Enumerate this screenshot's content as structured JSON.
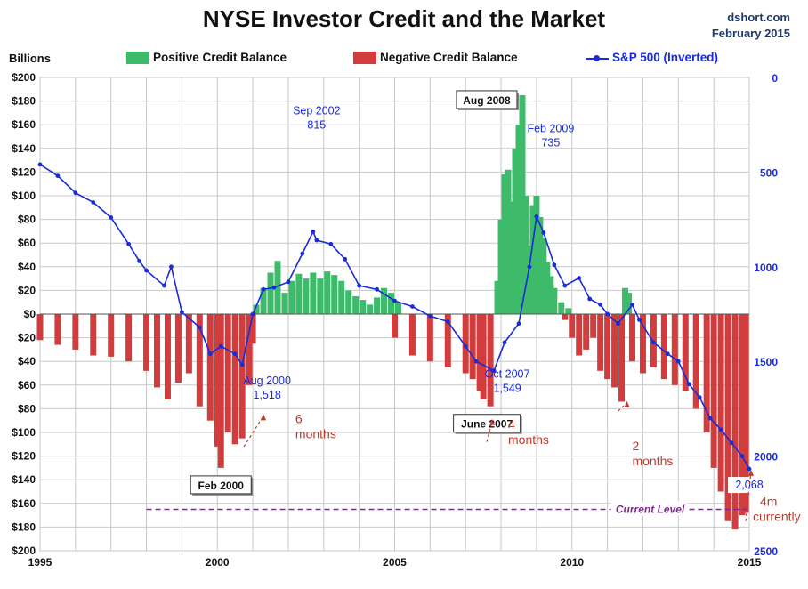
{
  "header": {
    "title": "NYSE Investor Credit and the Market",
    "source_line1": "dshort.com",
    "source_line2": "February 2015"
  },
  "chart_data": {
    "type": "bar",
    "title": "NYSE Investor Credit and the Market",
    "ylabel": "Billions",
    "xlim": [
      1995,
      2015
    ],
    "ylim": [
      -200,
      200
    ],
    "y2lim": [
      0,
      2500
    ],
    "y2_inverted": true,
    "grid": true,
    "legend_placement": "top",
    "x_ticks": [
      "1995",
      "2000",
      "2005",
      "2010",
      "2015"
    ],
    "y_ticks": [
      "$200",
      "$180",
      "$160",
      "$140",
      "$120",
      "$100",
      "$80",
      "$60",
      "$40",
      "$20",
      "$0",
      "$20",
      "$40",
      "$60",
      "$80",
      "$100",
      "$120",
      "$140",
      "$160",
      "$180",
      "$200"
    ],
    "y2_ticks": [
      "0",
      "500",
      "1000",
      "1500",
      "2000",
      "2500"
    ],
    "colors": {
      "positive": "#3dbb6a",
      "negative": "#d23c3c",
      "sp500": "#1a2bd8",
      "current_level": "#7a2a8a",
      "annotation": "#c0392b",
      "grid": "#c8c8c8"
    },
    "series": [
      {
        "name": "Positive Credit Balance",
        "x": [
          2001.1,
          2001.3,
          2001.5,
          2001.7,
          2001.9,
          2002.1,
          2002.3,
          2002.5,
          2002.7,
          2002.9,
          2003.1,
          2003.3,
          2003.5,
          2003.7,
          2003.9,
          2004.1,
          2004.3,
          2004.5,
          2004.7,
          2004.9,
          2005.1,
          2007.9,
          2008.0,
          2008.1,
          2008.2,
          2008.3,
          2008.4,
          2008.5,
          2008.6,
          2008.7,
          2008.8,
          2008.9,
          2009.0,
          2009.1,
          2009.2,
          2009.3,
          2009.4,
          2009.5,
          2009.7,
          2009.9,
          2011.5,
          2011.6
        ],
        "values": [
          8,
          22,
          35,
          45,
          18,
          28,
          34,
          30,
          35,
          30,
          36,
          33,
          28,
          20,
          15,
          12,
          8,
          14,
          22,
          18,
          10,
          28,
          80,
          118,
          122,
          95,
          140,
          160,
          185,
          100,
          58,
          92,
          100,
          82,
          64,
          44,
          32,
          22,
          10,
          5,
          22,
          18
        ]
      },
      {
        "name": "Negative Credit Balance",
        "x": [
          1995.0,
          1995.5,
          1996.0,
          1996.5,
          1997.0,
          1997.5,
          1998.0,
          1998.3,
          1998.6,
          1998.9,
          1999.2,
          1999.5,
          1999.8,
          2000.0,
          2000.1,
          2000.3,
          2000.5,
          2000.7,
          2000.9,
          2001.0,
          2005.0,
          2005.5,
          2006.0,
          2006.5,
          2007.0,
          2007.2,
          2007.4,
          2007.5,
          2007.7,
          2009.8,
          2010.0,
          2010.2,
          2010.4,
          2010.6,
          2010.8,
          2011.0,
          2011.2,
          2011.4,
          2011.7,
          2012.0,
          2012.3,
          2012.6,
          2012.9,
          2013.2,
          2013.5,
          2013.8,
          2014.0,
          2014.2,
          2014.4,
          2014.6,
          2014.8,
          2014.9
        ],
        "values": [
          -22,
          -26,
          -30,
          -35,
          -36,
          -40,
          -48,
          -62,
          -72,
          -58,
          -50,
          -78,
          -90,
          -112,
          -130,
          -100,
          -110,
          -105,
          -60,
          -25,
          -20,
          -35,
          -40,
          -45,
          -50,
          -55,
          -65,
          -72,
          -78,
          -5,
          -20,
          -35,
          -30,
          -20,
          -48,
          -55,
          -62,
          -74,
          -40,
          -50,
          -45,
          -55,
          -60,
          -65,
          -80,
          -100,
          -130,
          -150,
          -175,
          -182,
          -170,
          -168
        ]
      },
      {
        "name": "S&P 500 (Inverted)",
        "x": [
          1995.0,
          1995.5,
          1996.0,
          1996.5,
          1997.0,
          1997.5,
          1997.8,
          1998.0,
          1998.5,
          1998.7,
          1999.0,
          1999.5,
          1999.8,
          2000.1,
          2000.5,
          2000.7,
          2001.0,
          2001.3,
          2001.6,
          2002.0,
          2002.4,
          2002.7,
          2002.8,
          2003.2,
          2003.6,
          2004.0,
          2004.5,
          2005.0,
          2005.5,
          2006.0,
          2006.5,
          2007.0,
          2007.3,
          2007.8,
          2008.1,
          2008.5,
          2008.8,
          2009.0,
          2009.2,
          2009.5,
          2009.8,
          2010.2,
          2010.5,
          2010.8,
          2011.0,
          2011.3,
          2011.7,
          2011.9,
          2012.3,
          2012.7,
          2013.0,
          2013.3,
          2013.6,
          2013.9,
          2014.2,
          2014.5,
          2014.8,
          2015.0
        ],
        "values": [
          460,
          520,
          610,
          660,
          740,
          880,
          970,
          1020,
          1100,
          1000,
          1240,
          1320,
          1460,
          1420,
          1460,
          1518,
          1250,
          1120,
          1110,
          1080,
          930,
          815,
          860,
          880,
          960,
          1100,
          1120,
          1180,
          1210,
          1260,
          1290,
          1420,
          1500,
          1549,
          1400,
          1300,
          1000,
          735,
          820,
          990,
          1100,
          1060,
          1170,
          1200,
          1250,
          1300,
          1200,
          1280,
          1400,
          1460,
          1500,
          1620,
          1690,
          1800,
          1860,
          1930,
          2000,
          2068
        ]
      }
    ],
    "annotations": [
      {
        "label": "Aug 2008",
        "x": 2008.6,
        "y": 185,
        "style": "box"
      },
      {
        "label": "Feb 2000",
        "x": 2000.1,
        "y": -130,
        "style": "box"
      },
      {
        "label": "June 2007",
        "x": 2007.6,
        "y": -78,
        "style": "box"
      },
      {
        "label": "Sep 2002",
        "value": "815",
        "x": 2002.8,
        "sp500": 815,
        "style": "blue"
      },
      {
        "label": "Feb 2009",
        "value": "735",
        "x": 2009.1,
        "sp500": 735,
        "style": "blue"
      },
      {
        "label": "Aug 2000",
        "value": "1,518",
        "x": 2000.7,
        "sp500": 1518,
        "style": "blue"
      },
      {
        "label": "Oct 2007",
        "value": "1,549",
        "x": 2007.8,
        "sp500": 1549,
        "style": "blue"
      },
      {
        "label": "2,068",
        "x": 2015.0,
        "sp500": 2068,
        "style": "blue"
      },
      {
        "label": "6",
        "label2": "months",
        "style": "red"
      },
      {
        "label": "4",
        "label2": "months",
        "style": "red"
      },
      {
        "label": "2",
        "label2": "months",
        "style": "red"
      },
      {
        "label": "4m",
        "label2": "currently",
        "style": "red"
      },
      {
        "label": "Current Level",
        "y": -165,
        "style": "line"
      }
    ]
  }
}
